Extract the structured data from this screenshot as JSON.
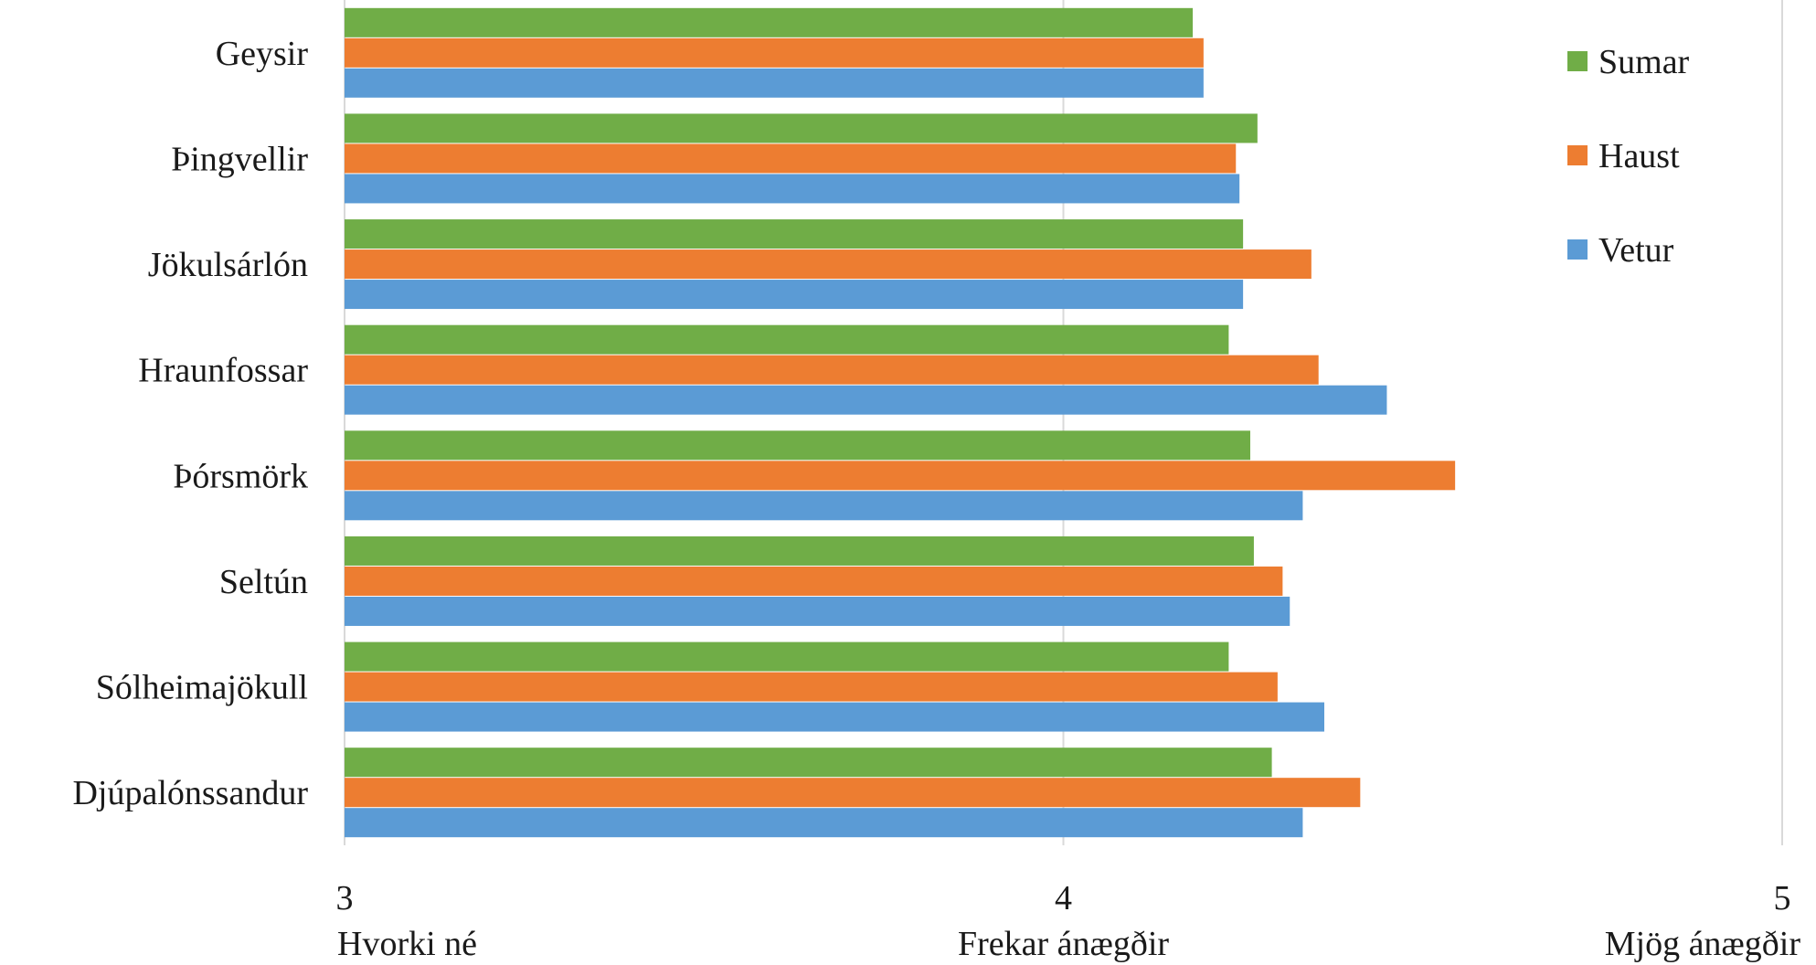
{
  "chart_data": {
    "type": "bar",
    "orientation": "horizontal",
    "categories": [
      "Geysir",
      "Þingvellir",
      "Jökulsárlón",
      "Hraunfossar",
      "Þórsmörk",
      "Seltún",
      "Sólheimajökull",
      "Djúpalónssandur"
    ],
    "series": [
      {
        "name": "Sumar",
        "color": "#70ad47",
        "values": [
          4.18,
          4.27,
          4.25,
          4.23,
          4.26,
          4.265,
          4.23,
          4.29
        ]
      },
      {
        "name": "Haust",
        "color": "#ed7d31",
        "values": [
          4.195,
          4.24,
          4.345,
          4.355,
          4.545,
          4.305,
          4.298,
          4.413
        ]
      },
      {
        "name": "Vetur",
        "color": "#5b9bd5",
        "values": [
          4.195,
          4.245,
          4.25,
          4.45,
          4.333,
          4.315,
          4.363,
          4.333
        ]
      }
    ],
    "xlim": [
      3,
      5
    ],
    "xticks": [
      {
        "value": 3,
        "number": "3",
        "label": "Hvorki né"
      },
      {
        "value": 4,
        "number": "4",
        "label": "Frekar ánægðir"
      },
      {
        "value": 5,
        "number": "5",
        "label": "Mjög ánægðir"
      }
    ],
    "grid": true,
    "legend": {
      "position": "top-right",
      "entries": [
        "Sumar",
        "Haust",
        "Vetur"
      ]
    },
    "title": "",
    "xlabel": "",
    "ylabel": ""
  }
}
